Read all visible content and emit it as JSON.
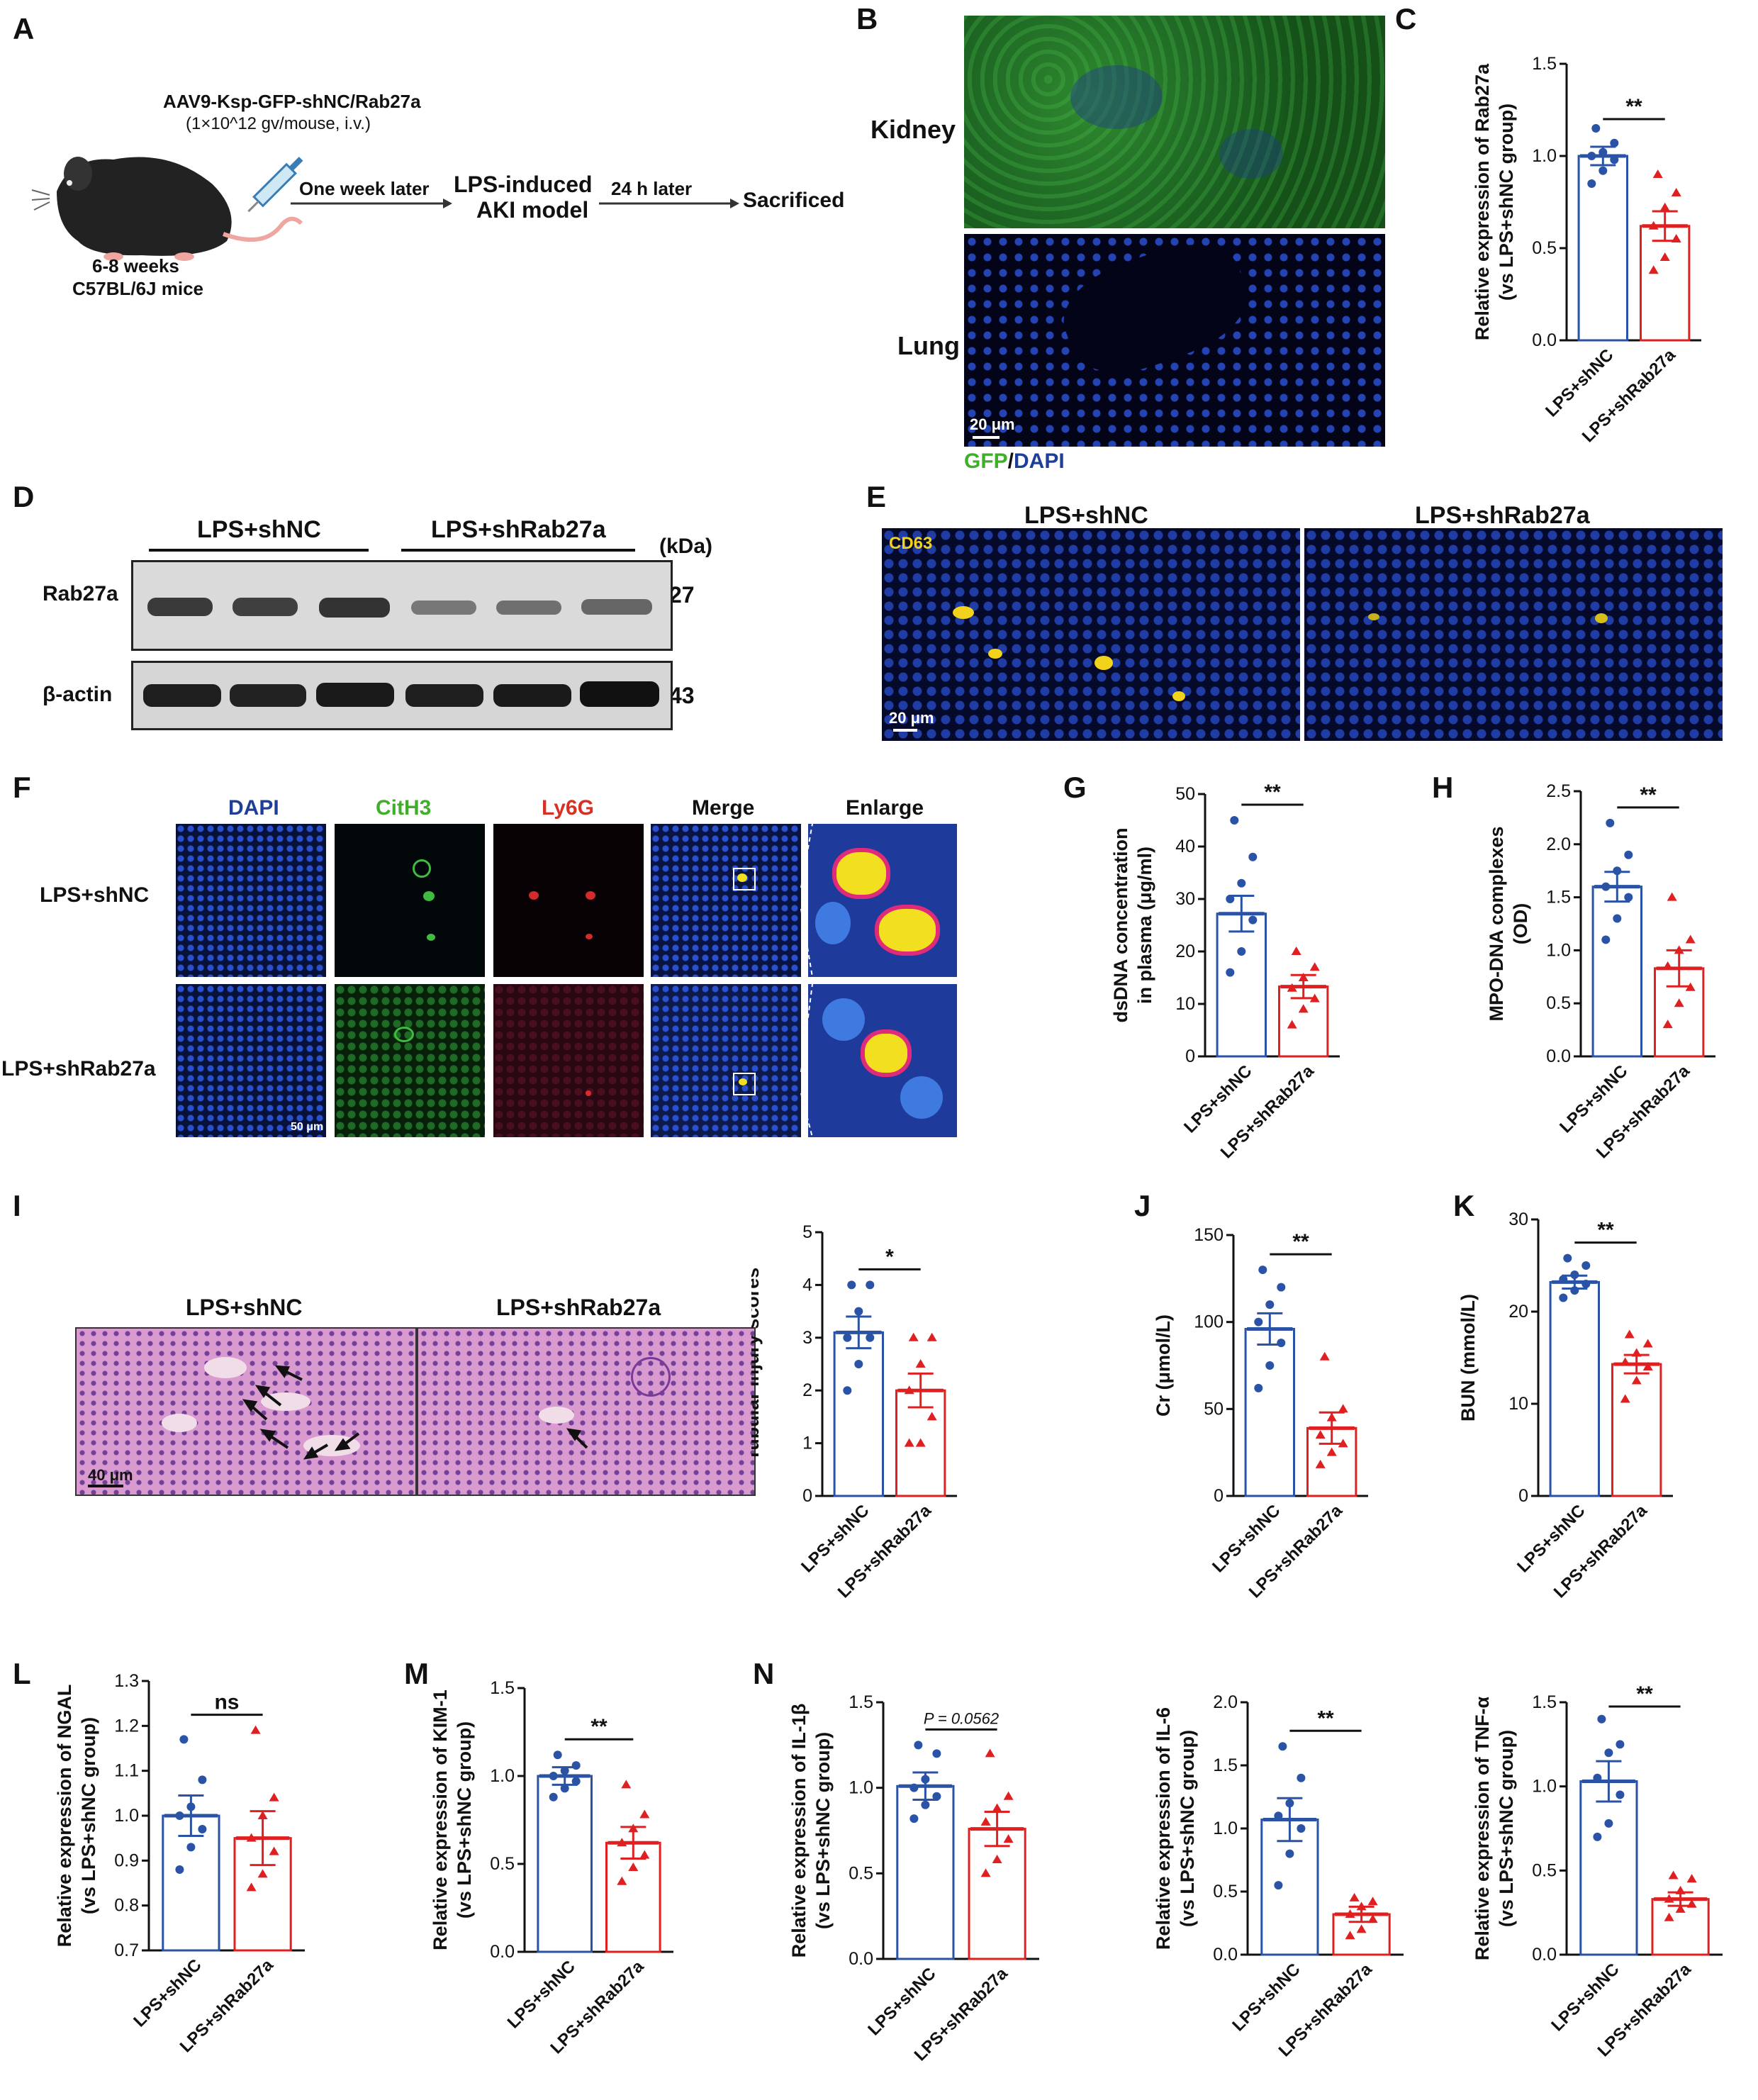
{
  "panel_letters": {
    "A": "A",
    "B": "B",
    "C": "C",
    "D": "D",
    "E": "E",
    "F": "F",
    "G": "G",
    "H": "H",
    "I": "I",
    "J": "J",
    "K": "K",
    "L": "L",
    "M": "M",
    "N": "N"
  },
  "schematic": {
    "virus": "AAV9-Ksp-GFP-shNC/Rab27a",
    "dose": "(1×10^12 gv/mouse, i.v.)",
    "step1": "One week later",
    "model_line1": "LPS-induced",
    "model_line2": "AKI model",
    "step2": "24 h later",
    "end": "Sacrificed",
    "mouse_line1": "6-8 weeks",
    "mouse_line2": "C57BL/6J mice"
  },
  "panel_b": {
    "row1": "Kidney",
    "row2": "Lung",
    "scale": "20 μm",
    "legend_gfp": "GFP",
    "legend_sep": "/",
    "legend_dapi": "DAPI",
    "colors": {
      "gfp": "#3fae2a",
      "dapi": "#1d3f9a"
    }
  },
  "panel_d": {
    "group1": "LPS+shNC",
    "group2": "LPS+shRab27a",
    "unit": "(kDa)",
    "row1_label": "Rab27a",
    "row1_kda": "27",
    "row2_label": "β-actin",
    "row2_kda": "43"
  },
  "panel_e": {
    "group1": "LPS+shNC",
    "group2": "LPS+shRab27a",
    "stain": "CD63",
    "scale": "20 μm"
  },
  "panel_f": {
    "cols": [
      "DAPI",
      "CitH3",
      "Ly6G",
      "Merge",
      "Enlarge"
    ],
    "col_colors": [
      "#1d3f9a",
      "#3fae2a",
      "#d93025",
      "#111111",
      "#111111"
    ],
    "rows": [
      "LPS+shNC",
      "LPS+shRab27a"
    ],
    "scale": "50 μm"
  },
  "panel_i": {
    "group1": "LPS+shNC",
    "group2": "LPS+shRab27a",
    "scale": "40 μm"
  },
  "colors": {
    "shNC": "#2a52a5",
    "shRab27a": "#e02020"
  },
  "chart_data": [
    {
      "id": "C",
      "type": "bar",
      "categories": [
        "LPS+shNC",
        "LPS+shRab27a"
      ],
      "values": [
        1.0,
        0.62
      ],
      "errors": [
        0.05,
        0.08
      ],
      "points": [
        [
          0.85,
          0.92,
          0.98,
          1.0,
          1.02,
          1.07,
          1.15
        ],
        [
          0.38,
          0.45,
          0.55,
          0.62,
          0.72,
          0.8,
          0.9
        ]
      ],
      "ylabel": [
        "Relative expression of Rab27a",
        "(vs LPS+shNC group)"
      ],
      "ylim": [
        0,
        1.5
      ],
      "ticks": [
        0.0,
        0.5,
        1.0,
        1.5
      ],
      "tick_labels": [
        "0.0",
        "0.5",
        "1.0",
        "1.5"
      ],
      "sig": "**"
    },
    {
      "id": "G",
      "type": "bar",
      "categories": [
        "LPS+shNC",
        "LPS+shRab27a"
      ],
      "values": [
        27.2,
        13.3
      ],
      "errors": [
        3.4,
        2.2
      ],
      "points": [
        [
          16,
          20,
          26,
          30,
          33,
          38,
          45
        ],
        [
          6,
          9,
          11,
          13,
          15,
          17,
          20
        ]
      ],
      "ylabel": [
        "dsDNA concentration",
        "in plasma (μg/ml)"
      ],
      "ylim": [
        0,
        50
      ],
      "ticks": [
        0,
        10,
        20,
        30,
        40,
        50
      ],
      "tick_labels": [
        "0",
        "10",
        "20",
        "30",
        "40",
        "50"
      ],
      "sig": "**"
    },
    {
      "id": "H",
      "type": "bar",
      "categories": [
        "LPS+shNC",
        "LPS+shRab27a"
      ],
      "values": [
        1.6,
        0.83
      ],
      "errors": [
        0.14,
        0.17
      ],
      "points": [
        [
          1.1,
          1.3,
          1.5,
          1.6,
          1.75,
          1.9,
          2.2
        ],
        [
          0.3,
          0.5,
          0.65,
          0.85,
          1.0,
          1.1,
          1.5
        ]
      ],
      "ylabel": [
        "MPO-DNA complexes",
        "(OD)"
      ],
      "ylim": [
        0,
        2.5
      ],
      "ticks": [
        0.0,
        0.5,
        1.0,
        1.5,
        2.0,
        2.5
      ],
      "tick_labels": [
        "0.0",
        "0.5",
        "1.0",
        "1.5",
        "2.0",
        "2.5"
      ],
      "sig": "**"
    },
    {
      "id": "I",
      "type": "bar",
      "categories": [
        "LPS+shNC",
        "LPS+shRab27a"
      ],
      "values": [
        3.1,
        2.0
      ],
      "errors": [
        0.3,
        0.32
      ],
      "points": [
        [
          2.0,
          2.5,
          3.0,
          3.0,
          3.5,
          4.0,
          4.0
        ],
        [
          1.0,
          1.0,
          1.5,
          2.0,
          2.5,
          3.0,
          3.0
        ]
      ],
      "ylabel": [
        "Tubular injury scores"
      ],
      "ylim": [
        0,
        5
      ],
      "ticks": [
        0,
        1,
        2,
        3,
        4,
        5
      ],
      "tick_labels": [
        "0",
        "1",
        "2",
        "3",
        "4",
        "5"
      ],
      "sig": "*"
    },
    {
      "id": "J",
      "type": "bar",
      "categories": [
        "LPS+shNC",
        "LPS+shRab27a"
      ],
      "values": [
        96,
        39
      ],
      "errors": [
        9,
        9
      ],
      "points": [
        [
          62,
          75,
          88,
          100,
          110,
          120,
          130
        ],
        [
          18,
          25,
          30,
          35,
          45,
          50,
          80
        ]
      ],
      "ylabel": [
        "Cr (μmol/L)"
      ],
      "ylim": [
        0,
        150
      ],
      "ticks": [
        0,
        50,
        100,
        150
      ],
      "tick_labels": [
        "0",
        "50",
        "100",
        "150"
      ],
      "sig": "**"
    },
    {
      "id": "K",
      "type": "bar",
      "categories": [
        "LPS+shNC",
        "LPS+shRab27a"
      ],
      "values": [
        23.2,
        14.3
      ],
      "errors": [
        0.7,
        1.0
      ],
      "points": [
        [
          21.5,
          22.3,
          23.0,
          23.5,
          24.0,
          25.0,
          25.8
        ],
        [
          10.5,
          12.5,
          14.0,
          14.5,
          15.5,
          16.5,
          17.5
        ]
      ],
      "ylabel": [
        "BUN (mmol/L)"
      ],
      "ylim": [
        0,
        30
      ],
      "ticks": [
        0,
        10,
        20,
        30
      ],
      "tick_labels": [
        "0",
        "10",
        "20",
        "30"
      ],
      "sig": "**"
    },
    {
      "id": "L",
      "type": "bar",
      "categories": [
        "LPS+shNC",
        "LPS+shRab27a"
      ],
      "values": [
        1.0,
        0.95
      ],
      "errors": [
        0.045,
        0.06
      ],
      "points": [
        [
          0.88,
          0.93,
          0.97,
          1.0,
          1.02,
          1.08,
          1.17
        ],
        [
          0.84,
          0.87,
          0.92,
          0.95,
          1.0,
          1.04,
          1.19
        ]
      ],
      "ylabel": [
        "Relative expression of NGAL",
        "(vs LPS+shNC group)"
      ],
      "ylim": [
        0.7,
        1.3
      ],
      "ticks": [
        0.7,
        0.8,
        0.9,
        1.0,
        1.1,
        1.2,
        1.3
      ],
      "tick_labels": [
        "0.7",
        "0.8",
        "0.9",
        "1.0",
        "1.1",
        "1.2",
        "1.3"
      ],
      "sig": "ns"
    },
    {
      "id": "M",
      "type": "bar",
      "categories": [
        "LPS+shNC",
        "LPS+shRab27a"
      ],
      "values": [
        1.0,
        0.62
      ],
      "errors": [
        0.05,
        0.09
      ],
      "points": [
        [
          0.88,
          0.93,
          0.97,
          1.0,
          1.03,
          1.06,
          1.12
        ],
        [
          0.4,
          0.48,
          0.55,
          0.62,
          0.7,
          0.78,
          0.95
        ]
      ],
      "ylabel": [
        "Relative expression of KIM-1",
        "(vs LPS+shNC group)"
      ],
      "ylim": [
        0,
        1.5
      ],
      "ticks": [
        0.0,
        0.5,
        1.0,
        1.5
      ],
      "tick_labels": [
        "0.0",
        "0.5",
        "1.0",
        "1.5"
      ],
      "sig": "**"
    },
    {
      "id": "N1",
      "type": "bar",
      "categories": [
        "LPS+shNC",
        "LPS+shRab27a"
      ],
      "values": [
        1.01,
        0.76
      ],
      "errors": [
        0.08,
        0.1
      ],
      "points": [
        [
          0.82,
          0.9,
          0.95,
          1.0,
          1.05,
          1.2,
          1.25
        ],
        [
          0.5,
          0.58,
          0.7,
          0.8,
          0.88,
          0.95,
          1.2
        ]
      ],
      "ylabel": [
        "Relative expression of IL-1β",
        "(vs LPS+shNC group)"
      ],
      "ylim": [
        0,
        1.5
      ],
      "ticks": [
        0.0,
        0.5,
        1.0,
        1.5
      ],
      "tick_labels": [
        "0.0",
        "0.5",
        "1.0",
        "1.5"
      ],
      "sig": "P = 0.0562"
    },
    {
      "id": "N2",
      "type": "bar",
      "categories": [
        "LPS+shNC",
        "LPS+shRab27a"
      ],
      "values": [
        1.07,
        0.32
      ],
      "errors": [
        0.17,
        0.06
      ],
      "points": [
        [
          0.55,
          0.8,
          1.0,
          1.1,
          1.2,
          1.4,
          1.65
        ],
        [
          0.15,
          0.2,
          0.28,
          0.32,
          0.38,
          0.42,
          0.45
        ]
      ],
      "ylabel": [
        "Relative expression of IL-6",
        "(vs LPS+shNC group)"
      ],
      "ylim": [
        0,
        2.0
      ],
      "ticks": [
        0.0,
        0.5,
        1.0,
        1.5,
        2.0
      ],
      "tick_labels": [
        "0.0",
        "0.5",
        "1.0",
        "1.5",
        "2.0"
      ],
      "sig": "**"
    },
    {
      "id": "N3",
      "type": "bar",
      "categories": [
        "LPS+shNC",
        "LPS+shRab27a"
      ],
      "values": [
        1.03,
        0.33
      ],
      "errors": [
        0.12,
        0.04
      ],
      "points": [
        [
          0.7,
          0.78,
          0.95,
          1.05,
          1.2,
          1.25,
          1.4
        ],
        [
          0.22,
          0.27,
          0.3,
          0.33,
          0.38,
          0.45,
          0.47
        ]
      ],
      "ylabel": [
        "Relative expression of TNF-α",
        "(vs LPS+shNC group)"
      ],
      "ylim": [
        0,
        1.5
      ],
      "ticks": [
        0.0,
        0.5,
        1.0,
        1.5
      ],
      "tick_labels": [
        "0.0",
        "0.5",
        "1.0",
        "1.5"
      ],
      "sig": "**"
    }
  ]
}
